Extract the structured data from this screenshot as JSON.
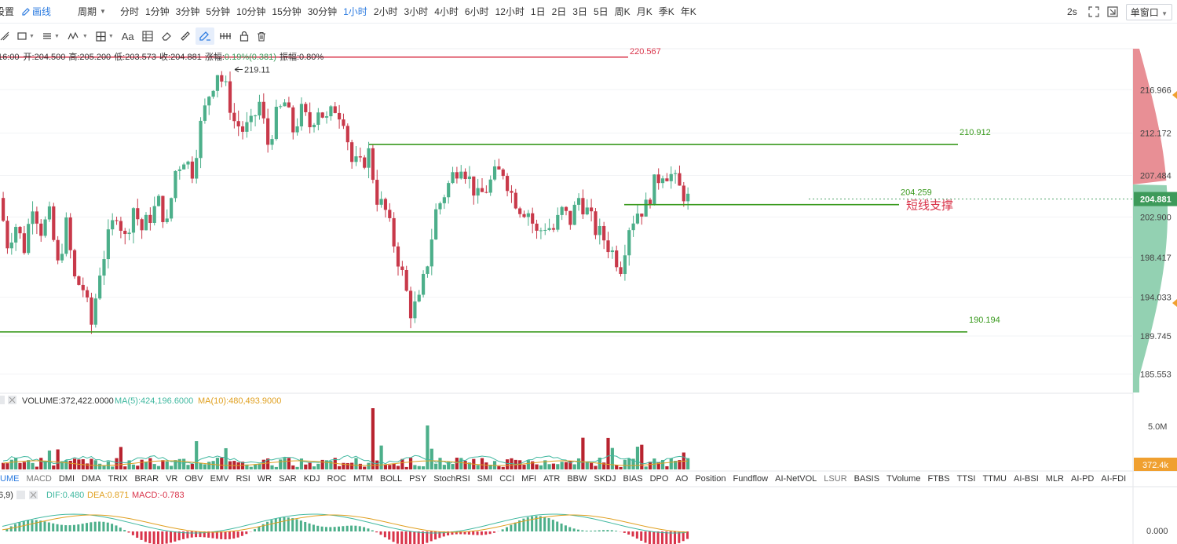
{
  "toolbar": {
    "settings_label": "设置",
    "draw_label": "画线",
    "period_label": "周期",
    "timeframes": [
      "分时",
      "1分钟",
      "3分钟",
      "5分钟",
      "10分钟",
      "15分钟",
      "30分钟",
      "1小时",
      "2小时",
      "3小时",
      "4小时",
      "6小时",
      "12小时",
      "1日",
      "2日",
      "3日",
      "5日",
      "周K",
      "月K",
      "季K",
      "年K"
    ],
    "active_timeframe": "1小时",
    "refresh_interval": "2s",
    "window_mode": "单窗口"
  },
  "drawing_tools": [
    "line-tool-icon",
    "rect-tool-icon",
    "hlines-tool-icon",
    "wave-tool-icon",
    "crosshair-tool-icon",
    "text-tool",
    "fib-tool-icon",
    "eraser-tool-icon",
    "ruler-tool-icon",
    "pen-tool-icon",
    "sequence-tool-icon",
    "lock-tool-icon",
    "trash-tool-icon"
  ],
  "text_tool_label": "Aa",
  "ohlc_info": {
    "time": "16:00",
    "open_label": "开:",
    "open": "204.500",
    "high_label": "高:",
    "high": "205.200",
    "low_label": "低:",
    "low": "203.573",
    "close_label": "收:",
    "close": "204.881",
    "change_label": "涨幅:",
    "change": "0.19%(0.381)",
    "amplitude_label": "振幅:",
    "amplitude": "0.80%"
  },
  "volume_info": {
    "volume": "VOLUME:372,422.0000",
    "ma5": "MA(5):424,196.6000",
    "ma10": "MA(10):480,493.9000"
  },
  "macd_info": {
    "params": "6,9)",
    "dif": "DIF:0.480",
    "dea": "DEA:0.871",
    "macd": "MACD:-0.783"
  },
  "indicators": [
    "UME",
    "MACD",
    "DMI",
    "DMA",
    "TRIX",
    "BRAR",
    "VR",
    "OBV",
    "EMV",
    "RSI",
    "WR",
    "SAR",
    "KDJ",
    "ROC",
    "MTM",
    "BOLL",
    "PSY",
    "StochRSI",
    "SMI",
    "CCI",
    "MFI",
    "ATR",
    "BBW",
    "SKDJ",
    "BIAS",
    "DPO",
    "AO",
    "Position",
    "Fundflow",
    "AI-NetVOL",
    "LSUR",
    "BASIS",
    "TVolume",
    "FTBS",
    "TTSI",
    "TTMU",
    "AI-BSI",
    "MLR",
    "AI-PD",
    "AI-FDI"
  ],
  "active_indicator": "UME",
  "colors": {
    "up": "#4caf8a",
    "down": "#c8394a",
    "line_green": "#3a9a1e",
    "line_red": "#d9344a",
    "accent": "#2d7ce0",
    "current_price_bg": "#3d9a5a",
    "volume_tag_bg": "#f0a030"
  },
  "chart_data": {
    "type": "candlestick",
    "title": "",
    "xlabel": "",
    "ylabel": "",
    "ylim": [
      183.5,
      221.5
    ],
    "y_ticks": [
      "216.966",
      "212.172",
      "207.484",
      "202.900",
      "198.417",
      "194.033",
      "189.745",
      "185.553"
    ],
    "current_price": "204.881",
    "price_path": [
      205.0,
      200.0,
      202.0,
      199.5,
      204.5,
      201.5,
      203.0,
      197.5,
      202.0,
      196.0,
      195.0,
      191.0,
      197.0,
      200.5,
      203.5,
      200.5,
      204.0,
      201.5,
      203.0,
      204.5,
      202.0,
      208.0,
      209.5,
      208.0,
      213.0,
      216.5,
      219.0,
      217.0,
      213.5,
      212.5,
      213.0,
      215.5,
      211.0,
      214.0,
      215.5,
      212.5,
      214.5,
      213.0,
      215.0,
      213.5,
      215.0,
      214.0,
      209.0,
      208.5,
      210.0,
      205.0,
      203.5,
      200.0,
      196.5,
      192.5,
      193.5,
      198.0,
      203.5,
      205.5,
      207.5,
      209.0,
      207.0,
      205.0,
      206.0,
      207.5,
      208.0,
      205.5,
      204.0,
      203.5,
      201.0,
      202.0,
      201.5,
      203.5,
      202.5,
      205.0,
      203.5,
      201.5,
      200.5,
      199.0,
      197.5,
      202.0,
      203.5,
      204.0,
      206.5,
      208.0,
      207.5,
      206.0,
      204.9
    ],
    "horizontal_lines": [
      {
        "value": 220.567,
        "label": "220.567",
        "color": "red"
      },
      {
        "value": 210.912,
        "label": "210.912",
        "color": "green"
      },
      {
        "value": 204.259,
        "label": "204.259",
        "color": "green",
        "annotation": "短线支撑"
      },
      {
        "value": 190.194,
        "label": "190.194",
        "color": "green"
      }
    ],
    "high_marker": "219.11",
    "volume_ticks": [
      "5.0M"
    ],
    "volume_current": "372.4k",
    "macd_ticks": [
      "0.000"
    ]
  }
}
